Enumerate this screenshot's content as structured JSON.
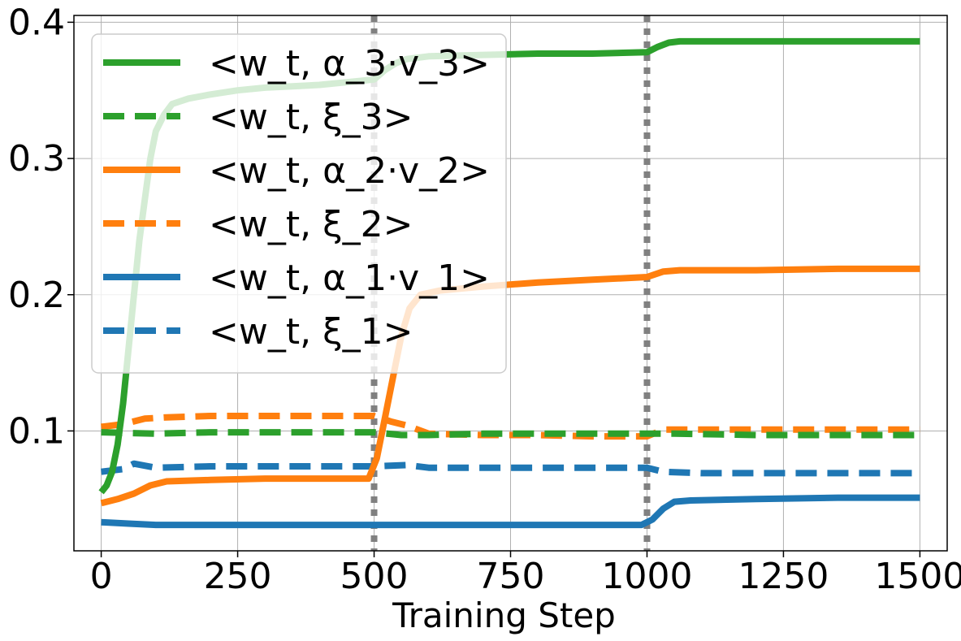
{
  "chart_data": {
    "type": "line",
    "title": "",
    "xlabel": "Training Step",
    "ylabel": "",
    "xlim": [
      -50,
      1550
    ],
    "ylim": [
      0.012,
      0.405
    ],
    "xticks": [
      0,
      250,
      500,
      750,
      1000,
      1250,
      1500
    ],
    "xtick_labels": [
      "0",
      "250",
      "500",
      "750",
      "1000",
      "1250",
      "1500"
    ],
    "yticks": [
      0.1,
      0.2,
      0.3,
      0.4
    ],
    "ytick_labels": [
      "0.1",
      "0.2",
      "0.3",
      "0.4"
    ],
    "grid": true,
    "legend_position": "upper-left",
    "vlines": [
      500,
      1000
    ],
    "colors": {
      "green": "#2ca02c",
      "orange": "#ff7f0e",
      "blue": "#1f77b4",
      "vline": "#808080",
      "grid": "#b0b0b0"
    },
    "series": [
      {
        "name": "<w_t, α_3·v_3>",
        "color": "#2ca02c",
        "style": "solid",
        "points": [
          [
            0,
            0.055
          ],
          [
            10,
            0.06
          ],
          [
            20,
            0.07
          ],
          [
            30,
            0.09
          ],
          [
            40,
            0.12
          ],
          [
            50,
            0.16
          ],
          [
            60,
            0.2
          ],
          [
            70,
            0.24
          ],
          [
            80,
            0.27
          ],
          [
            90,
            0.3
          ],
          [
            100,
            0.32
          ],
          [
            115,
            0.332
          ],
          [
            130,
            0.34
          ],
          [
            160,
            0.344
          ],
          [
            200,
            0.347
          ],
          [
            250,
            0.35
          ],
          [
            300,
            0.352
          ],
          [
            350,
            0.353
          ],
          [
            400,
            0.354
          ],
          [
            450,
            0.356
          ],
          [
            500,
            0.358
          ],
          [
            520,
            0.365
          ],
          [
            540,
            0.37
          ],
          [
            560,
            0.373
          ],
          [
            600,
            0.375
          ],
          [
            700,
            0.376
          ],
          [
            800,
            0.377
          ],
          [
            900,
            0.377
          ],
          [
            1000,
            0.378
          ],
          [
            1020,
            0.382
          ],
          [
            1040,
            0.385
          ],
          [
            1060,
            0.386
          ],
          [
            1200,
            0.386
          ],
          [
            1350,
            0.386
          ],
          [
            1500,
            0.386
          ]
        ]
      },
      {
        "name": "<w_t, ξ_3>",
        "color": "#2ca02c",
        "style": "dashed",
        "points": [
          [
            0,
            0.099
          ],
          [
            100,
            0.098
          ],
          [
            200,
            0.099
          ],
          [
            300,
            0.099
          ],
          [
            400,
            0.099
          ],
          [
            500,
            0.099
          ],
          [
            550,
            0.097
          ],
          [
            600,
            0.097
          ],
          [
            700,
            0.098
          ],
          [
            800,
            0.098
          ],
          [
            900,
            0.098
          ],
          [
            1000,
            0.098
          ],
          [
            1050,
            0.098
          ],
          [
            1200,
            0.097
          ],
          [
            1350,
            0.097
          ],
          [
            1500,
            0.097
          ]
        ]
      },
      {
        "name": "<w_t, α_2·v_2>",
        "color": "#ff7f0e",
        "style": "solid",
        "points": [
          [
            0,
            0.047
          ],
          [
            30,
            0.05
          ],
          [
            60,
            0.054
          ],
          [
            90,
            0.06
          ],
          [
            120,
            0.063
          ],
          [
            200,
            0.064
          ],
          [
            300,
            0.065
          ],
          [
            400,
            0.065
          ],
          [
            490,
            0.065
          ],
          [
            505,
            0.08
          ],
          [
            520,
            0.11
          ],
          [
            535,
            0.14
          ],
          [
            550,
            0.17
          ],
          [
            565,
            0.19
          ],
          [
            585,
            0.2
          ],
          [
            620,
            0.203
          ],
          [
            700,
            0.206
          ],
          [
            800,
            0.209
          ],
          [
            900,
            0.211
          ],
          [
            1000,
            0.213
          ],
          [
            1030,
            0.217
          ],
          [
            1060,
            0.218
          ],
          [
            1200,
            0.218
          ],
          [
            1350,
            0.219
          ],
          [
            1500,
            0.219
          ]
        ]
      },
      {
        "name": "<w_t, ξ_2>",
        "color": "#ff7f0e",
        "style": "dashed",
        "points": [
          [
            0,
            0.103
          ],
          [
            40,
            0.105
          ],
          [
            80,
            0.109
          ],
          [
            120,
            0.11
          ],
          [
            200,
            0.111
          ],
          [
            300,
            0.111
          ],
          [
            400,
            0.111
          ],
          [
            500,
            0.111
          ],
          [
            530,
            0.107
          ],
          [
            560,
            0.104
          ],
          [
            600,
            0.098
          ],
          [
            700,
            0.097
          ],
          [
            800,
            0.097
          ],
          [
            900,
            0.096
          ],
          [
            1000,
            0.096
          ],
          [
            1030,
            0.101
          ],
          [
            1100,
            0.101
          ],
          [
            1300,
            0.101
          ],
          [
            1500,
            0.101
          ]
        ]
      },
      {
        "name": "<w_t, α_1·v_1>",
        "color": "#1f77b4",
        "style": "solid",
        "points": [
          [
            0,
            0.033
          ],
          [
            50,
            0.032
          ],
          [
            100,
            0.031
          ],
          [
            200,
            0.031
          ],
          [
            300,
            0.031
          ],
          [
            400,
            0.031
          ],
          [
            500,
            0.031
          ],
          [
            600,
            0.031
          ],
          [
            700,
            0.031
          ],
          [
            800,
            0.031
          ],
          [
            900,
            0.031
          ],
          [
            990,
            0.031
          ],
          [
            1010,
            0.035
          ],
          [
            1030,
            0.043
          ],
          [
            1050,
            0.048
          ],
          [
            1080,
            0.049
          ],
          [
            1200,
            0.05
          ],
          [
            1350,
            0.051
          ],
          [
            1500,
            0.051
          ]
        ]
      },
      {
        "name": "<w_t, ξ_1>",
        "color": "#1f77b4",
        "style": "dashed",
        "points": [
          [
            0,
            0.07
          ],
          [
            40,
            0.072
          ],
          [
            60,
            0.076
          ],
          [
            100,
            0.073
          ],
          [
            200,
            0.074
          ],
          [
            300,
            0.074
          ],
          [
            400,
            0.074
          ],
          [
            500,
            0.074
          ],
          [
            560,
            0.075
          ],
          [
            600,
            0.073
          ],
          [
            700,
            0.073
          ],
          [
            800,
            0.073
          ],
          [
            900,
            0.073
          ],
          [
            1000,
            0.073
          ],
          [
            1030,
            0.07
          ],
          [
            1100,
            0.069
          ],
          [
            1300,
            0.069
          ],
          [
            1500,
            0.069
          ]
        ]
      }
    ]
  }
}
